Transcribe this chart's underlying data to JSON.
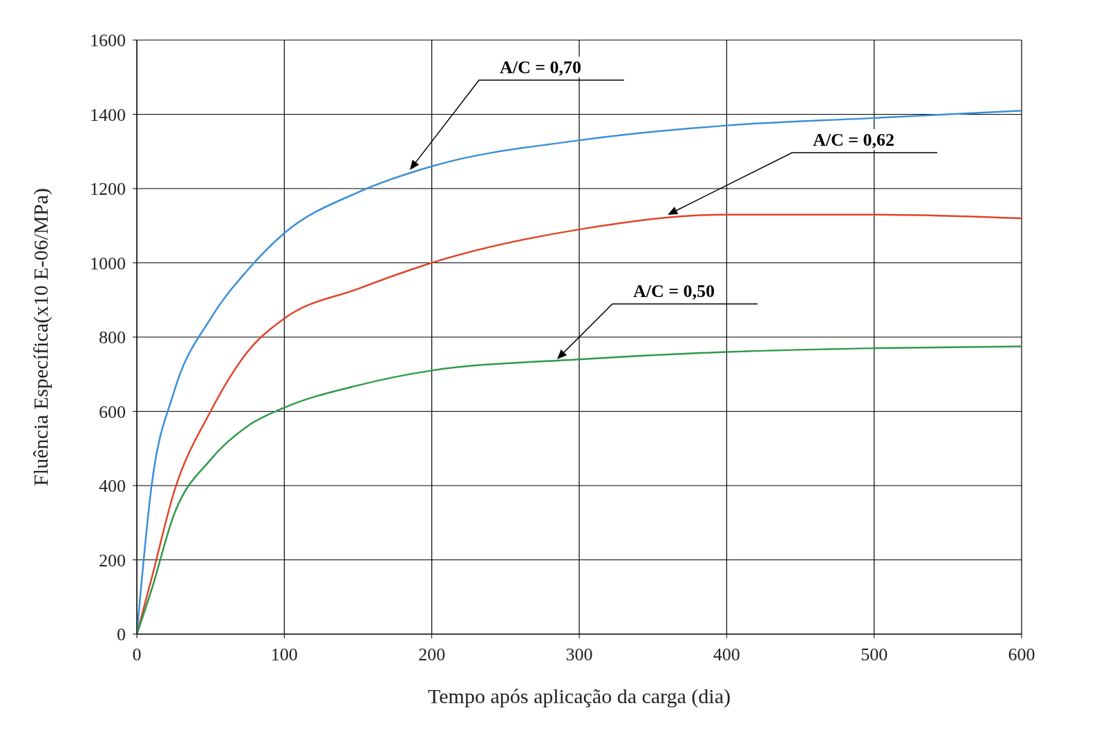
{
  "chart_data": {
    "type": "line",
    "xlabel": "Tempo após aplicação da carga (dia)",
    "ylabel": "Fluência Específica(x10 E-06/MPa)",
    "x": [
      0,
      10,
      25,
      50,
      75,
      100,
      150,
      200,
      300,
      400,
      500,
      600
    ],
    "series": [
      {
        "color": "#3a8fd8",
        "values": [
          0,
          400,
          650,
          850,
          980,
          1080,
          1190,
          1260,
          1330,
          1370,
          1390,
          1410
        ]
      },
      {
        "color": "#e0442a",
        "values": [
          0,
          150,
          380,
          600,
          760,
          850,
          930,
          1000,
          1090,
          1130,
          1130,
          1120
        ]
      },
      {
        "color": "#2e9a4a",
        "values": [
          0,
          120,
          320,
          470,
          560,
          610,
          670,
          710,
          740,
          760,
          770,
          775
        ]
      }
    ],
    "xlim": [
      0,
      600
    ],
    "xticks": [
      0,
      100,
      200,
      300,
      400,
      500,
      600
    ],
    "ylim": [
      0,
      1600
    ],
    "yticks": [
      0,
      200,
      400,
      600,
      800,
      1000,
      1200,
      1400,
      1600
    ],
    "grid": true,
    "legend": false,
    "marker": "none",
    "line_style": "solid",
    "annotations": [
      "A/C = 0,70",
      "A/C = 0,62",
      "A/C = 0,50"
    ]
  }
}
